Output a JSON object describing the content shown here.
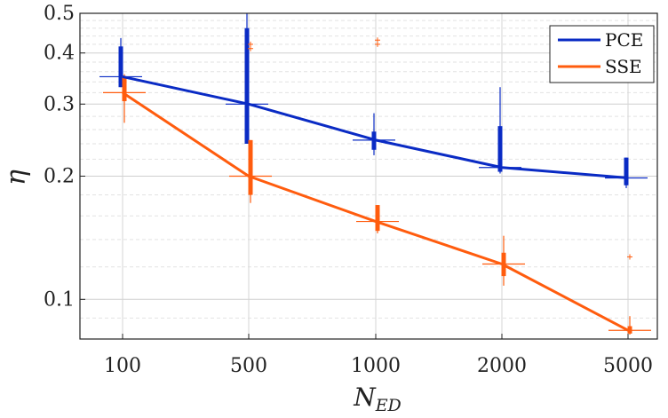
{
  "chart_data": {
    "type": "line",
    "title": "",
    "xlabel": "N",
    "xlabel_sub": "ED",
    "ylabel": "η",
    "yscale": "log",
    "ylim": [
      0.08,
      0.5
    ],
    "yticks": [
      0.1,
      0.2,
      0.3,
      0.4,
      0.5
    ],
    "ytick_labels": [
      "0.1",
      "0.2",
      "0.3",
      "0.4",
      "0.5"
    ],
    "categories": [
      "100",
      "500",
      "1000",
      "2000",
      "5000"
    ],
    "grid": true,
    "legend_position": "top-right",
    "series": [
      {
        "name": "PCE",
        "color": "#0a2bc4",
        "values": [
          0.35,
          0.3,
          0.245,
          0.21,
          0.198
        ],
        "box_low": [
          0.33,
          0.24,
          0.232,
          0.205,
          0.19
        ],
        "box_high": [
          0.415,
          0.46,
          0.257,
          0.265,
          0.222
        ],
        "whisker_low": [
          0.33,
          0.24,
          0.225,
          0.203,
          0.187
        ],
        "whisker_high": [
          0.435,
          0.5,
          0.285,
          0.33,
          0.222
        ],
        "outliers": [
          [],
          [],
          [],
          [],
          []
        ]
      },
      {
        "name": "SSE",
        "color": "#ff5c0e",
        "values": [
          0.32,
          0.2,
          0.155,
          0.122,
          0.084
        ],
        "box_low": [
          0.305,
          0.18,
          0.147,
          0.114,
          0.0825
        ],
        "box_high": [
          0.35,
          0.245,
          0.17,
          0.13,
          0.086
        ],
        "whisker_low": [
          0.27,
          0.172,
          0.145,
          0.108,
          0.082
        ],
        "whisker_high": [
          0.355,
          0.245,
          0.17,
          0.143,
          0.091
        ],
        "outliers": [
          [],
          [
            0.42,
            0.41
          ],
          [
            0.43,
            0.42
          ],
          [],
          [
            0.127
          ]
        ]
      }
    ]
  }
}
